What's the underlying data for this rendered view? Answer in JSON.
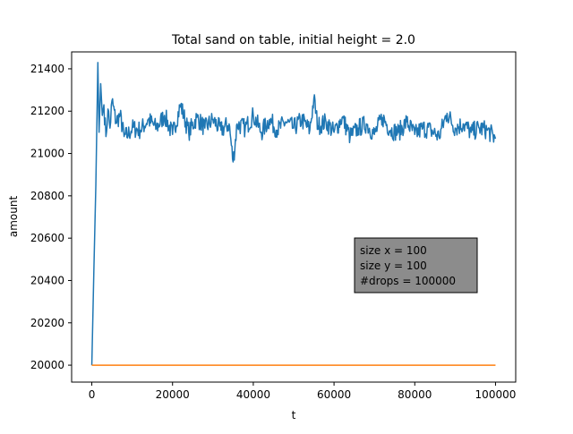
{
  "chart_data": {
    "type": "line",
    "title": "Total sand on table, initial height = 2.0",
    "xlabel": "t",
    "ylabel": "amount",
    "xlim": [
      -5000,
      105000
    ],
    "ylim": [
      19920,
      21480
    ],
    "xticks": [
      0,
      20000,
      40000,
      60000,
      80000,
      100000
    ],
    "xtick_labels": [
      "0",
      "20000",
      "40000",
      "60000",
      "80000",
      "100000"
    ],
    "yticks": [
      20000,
      20200,
      20400,
      20600,
      20800,
      21000,
      21200,
      21400
    ],
    "ytick_labels": [
      "20000",
      "20200",
      "20400",
      "20600",
      "20800",
      "21000",
      "21200",
      "21400"
    ],
    "grid": false,
    "annotation": {
      "lines": [
        "size x = 100",
        "size y = 100",
        "#drops = 100000"
      ],
      "background": "#8c8c8c",
      "placement": "lower-right"
    },
    "series": [
      {
        "color": "#1f77b4",
        "x": [
          0,
          500,
          1000,
          1500,
          1800,
          2200,
          2600,
          3000,
          3500,
          4000,
          4500,
          5000,
          6000,
          7000,
          8000,
          9000,
          10000,
          12000,
          14000,
          16000,
          18000,
          20000,
          22000,
          24000,
          26000,
          28000,
          30000,
          32000,
          34000,
          35000,
          36000,
          38000,
          40000,
          42000,
          44000,
          46000,
          48000,
          50000,
          52000,
          54000,
          55000,
          56000,
          58000,
          60000,
          62000,
          64000,
          66000,
          68000,
          70000,
          72000,
          74000,
          76000,
          78000,
          80000,
          82000,
          84000,
          86000,
          88000,
          90000,
          92000,
          94000,
          96000,
          98000,
          100000
        ],
        "values": [
          20000,
          20440,
          20850,
          21430,
          21100,
          21330,
          21180,
          21230,
          21080,
          21210,
          21120,
          21250,
          21150,
          21180,
          21080,
          21090,
          21120,
          21110,
          21160,
          21120,
          21180,
          21090,
          21230,
          21100,
          21170,
          21120,
          21160,
          21110,
          21140,
          20960,
          21140,
          21120,
          21180,
          21100,
          21160,
          21110,
          21150,
          21120,
          21160,
          21110,
          21260,
          21130,
          21150,
          21100,
          21170,
          21080,
          21120,
          21140,
          21090,
          21170,
          21110,
          21100,
          21150,
          21090,
          21120,
          21110,
          21080,
          21190,
          21120,
          21140,
          21100,
          21120,
          21110,
          21070
        ]
      },
      {
        "color": "#ff7f0e",
        "x": [
          0,
          100000
        ],
        "values": [
          20000,
          20000
        ]
      }
    ]
  }
}
